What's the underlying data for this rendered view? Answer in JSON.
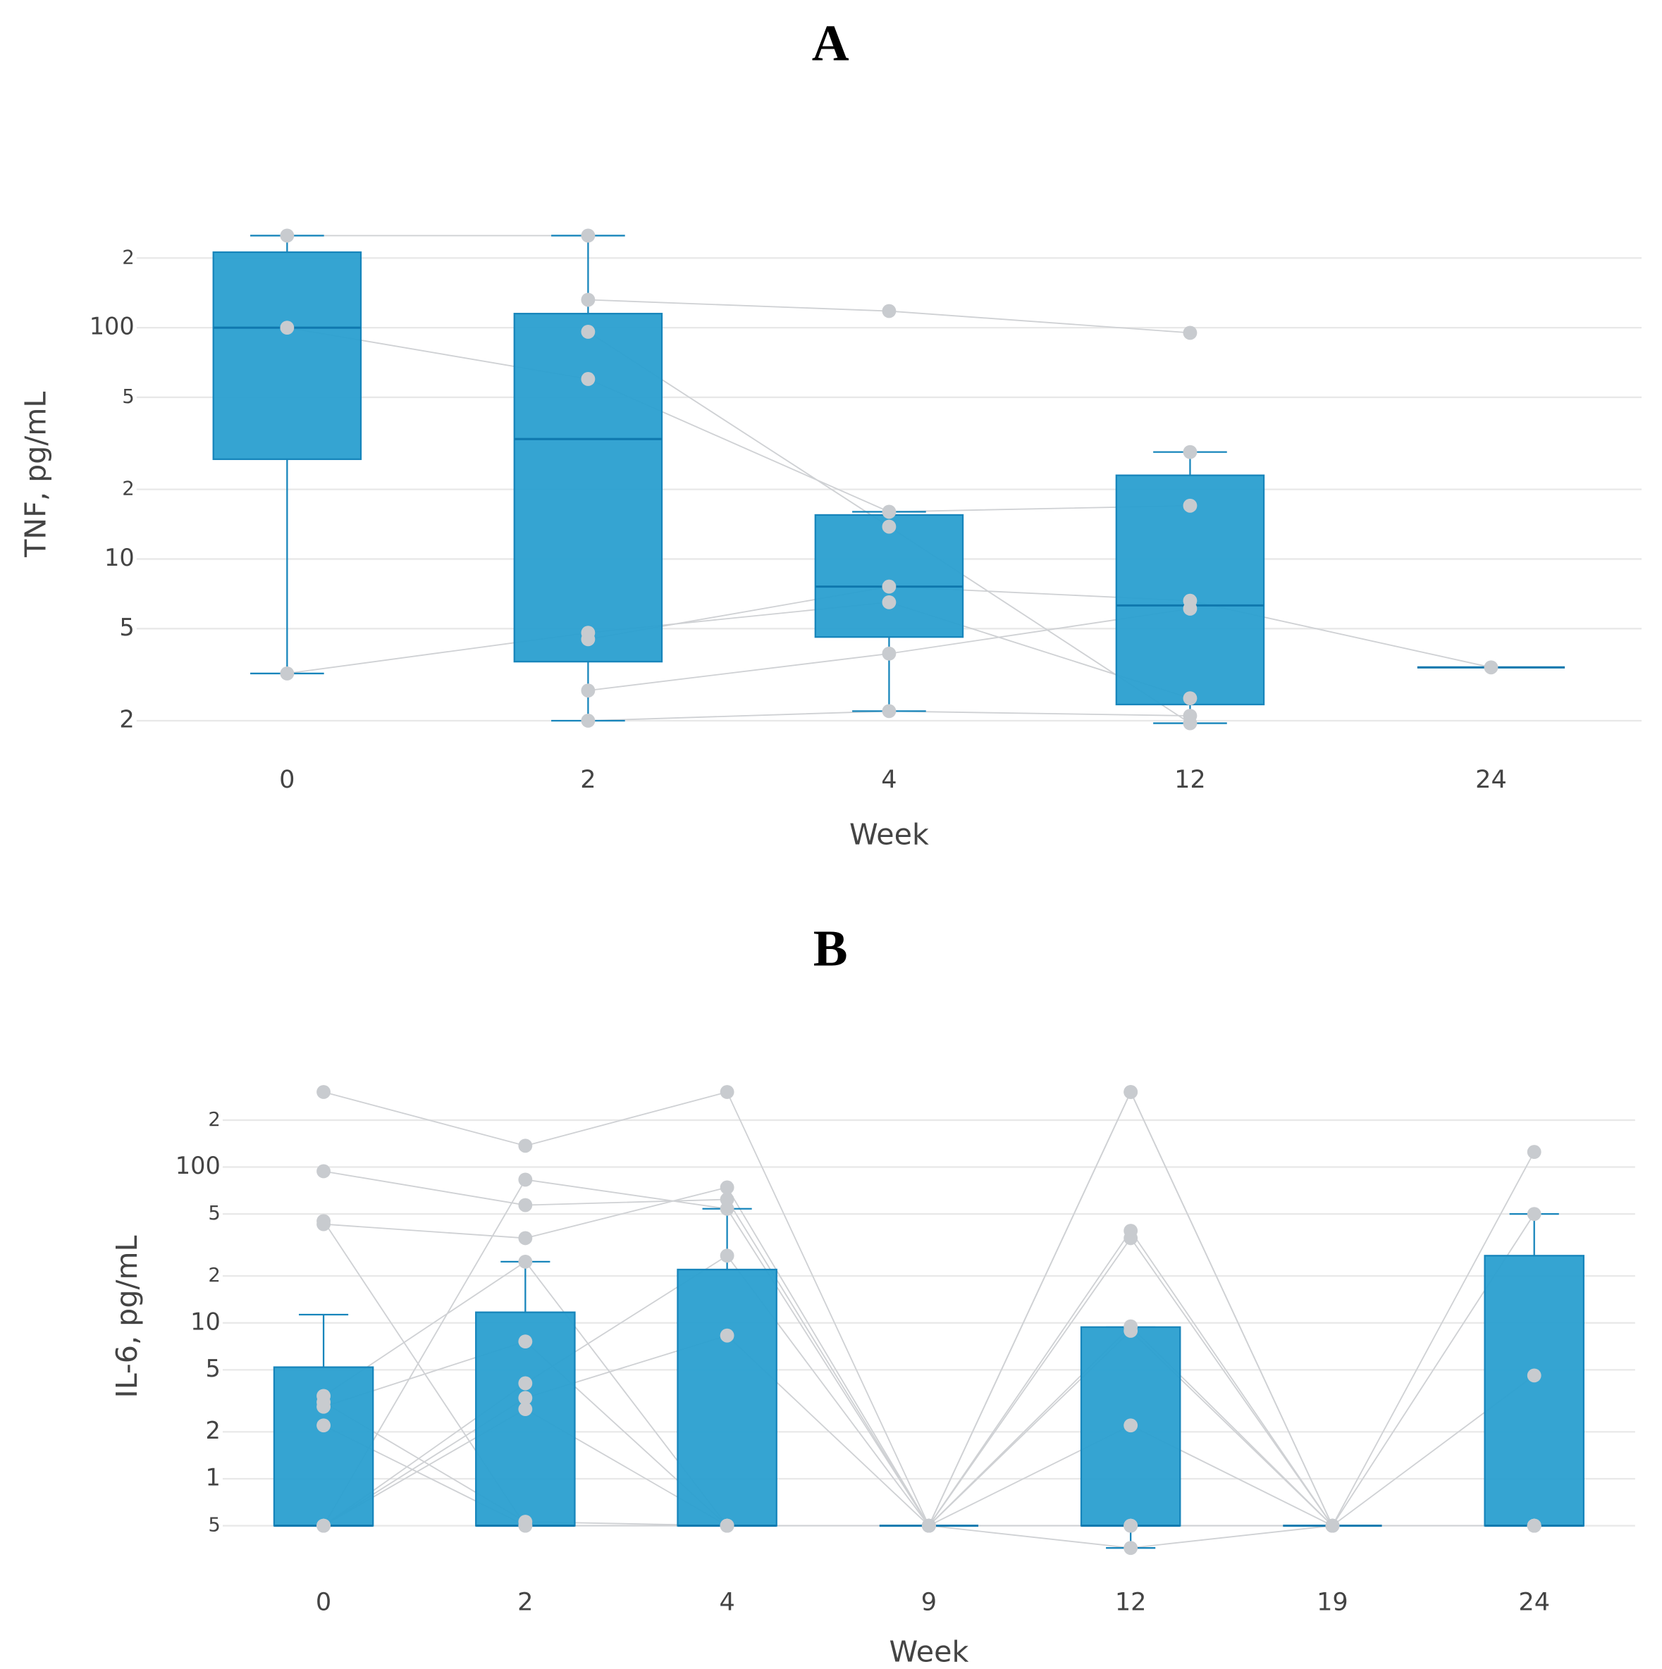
{
  "chart_data": [
    {
      "type": "box",
      "title": "A",
      "x_label": "Week",
      "y_label": "TNF, pg/mL",
      "log_scale": true,
      "grid": true,
      "color": "#2a9fd0",
      "point_color": "#c8cbcf",
      "categories": [
        "0",
        "2",
        "4",
        "12",
        "24"
      ],
      "ylim": [
        1.8,
        300
      ],
      "yticks": [
        {
          "value": 200,
          "label": "2"
        },
        100,
        {
          "value": 50,
          "label": "5"
        },
        {
          "value": 20,
          "label": "2"
        },
        10,
        5,
        2
      ],
      "boxes": {
        "q1": [
          27,
          3.6,
          4.6,
          2.35,
          3.4
        ],
        "median": [
          100,
          33,
          7.6,
          6.3,
          3.4
        ],
        "q3": [
          212,
          115,
          15.5,
          23,
          3.4
        ],
        "whisker_low": [
          3.2,
          2,
          2.2,
          1.95,
          3.4
        ],
        "whisker_high": [
          250,
          250,
          16,
          29,
          3.4
        ]
      },
      "subjects": [
        {
          "values": [
            250,
            250,
            null,
            29,
            null
          ]
        },
        {
          "values": [
            100,
            60,
            16,
            17,
            null
          ]
        },
        {
          "values": [
            null,
            132,
            118,
            95,
            null
          ]
        },
        {
          "values": [
            3.2,
            4.8,
            6.5,
            2.5,
            null
          ]
        },
        {
          "values": [
            null,
            96,
            13.8,
            1.95,
            null
          ]
        },
        {
          "values": [
            null,
            4.5,
            7.6,
            6.6,
            3.4
          ]
        },
        {
          "values": [
            null,
            2,
            2.2,
            2.1,
            null
          ]
        },
        {
          "values": [
            null,
            2.7,
            3.9,
            6.1,
            null
          ]
        }
      ]
    },
    {
      "type": "box",
      "title": "B",
      "x_label": "Week",
      "y_label": "IL-6, pg/mL",
      "log_scale": true,
      "grid": true,
      "color": "#2a9fd0",
      "point_color": "#c8cbcf",
      "categories": [
        "0",
        "2",
        "4",
        "9",
        "12",
        "19",
        "24"
      ],
      "ylim": [
        0.3,
        400
      ],
      "yticks": [
        {
          "value": 200,
          "label": "2"
        },
        100,
        {
          "value": 50,
          "label": "5"
        },
        {
          "value": 20,
          "label": "2"
        },
        10,
        5,
        2,
        1,
        {
          "value": 0.5,
          "label": "5"
        }
      ],
      "boxes": {
        "q1": [
          0.5,
          0.5,
          0.5,
          0.5,
          0.5,
          0.5,
          0.5
        ],
        "median": [
          0.5,
          0.5,
          0.5,
          0.5,
          0.5,
          0.5,
          0.5
        ],
        "q3": [
          5.2,
          11.7,
          22,
          0.5,
          9.4,
          0.5,
          27
        ],
        "whisker_low": [
          0.5,
          0.5,
          0.5,
          0.5,
          0.36,
          0.5,
          0.5
        ],
        "whisker_high": [
          11.3,
          24.7,
          54,
          0.5,
          9.4,
          0.5,
          50
        ]
      },
      "subjects": [
        {
          "values": [
            303,
            137,
            303,
            0.5,
            303,
            0.5,
            125
          ]
        },
        {
          "values": [
            94,
            57,
            62,
            0.5,
            2.2,
            0.5,
            0.5
          ]
        },
        {
          "values": [
            45,
            0.5,
            0.5,
            0.5,
            39,
            0.5,
            0.5
          ]
        },
        {
          "values": [
            43,
            35,
            74,
            0.5,
            303,
            0.5,
            0.5
          ]
        },
        {
          "values": [
            0.5,
            83,
            54,
            0.5,
            0.5,
            0.5,
            0.5
          ]
        },
        {
          "values": [
            3.4,
            24.7,
            0.5,
            0.5,
            9.5,
            0.5,
            0.5
          ]
        },
        {
          "values": [
            3.1,
            0.53,
            0.5,
            0.5,
            0.5,
            0.5,
            0.5
          ]
        },
        {
          "values": [
            2.9,
            7.6,
            0.5,
            0.5,
            35,
            0.5,
            0.5
          ]
        },
        {
          "values": [
            2.2,
            0.5,
            0.5,
            0.5,
            8.9,
            0.5,
            4.6
          ]
        },
        {
          "values": [
            0.5,
            4.1,
            27,
            0.5,
            0.5,
            0.5,
            50
          ]
        },
        {
          "values": [
            0.5,
            3.3,
            8.3,
            0.5,
            0.36,
            0.5,
            0.5
          ]
        },
        {
          "values": [
            0.5,
            2.8,
            0.5,
            0.5,
            0.5,
            0.5,
            0.5
          ]
        }
      ]
    }
  ]
}
